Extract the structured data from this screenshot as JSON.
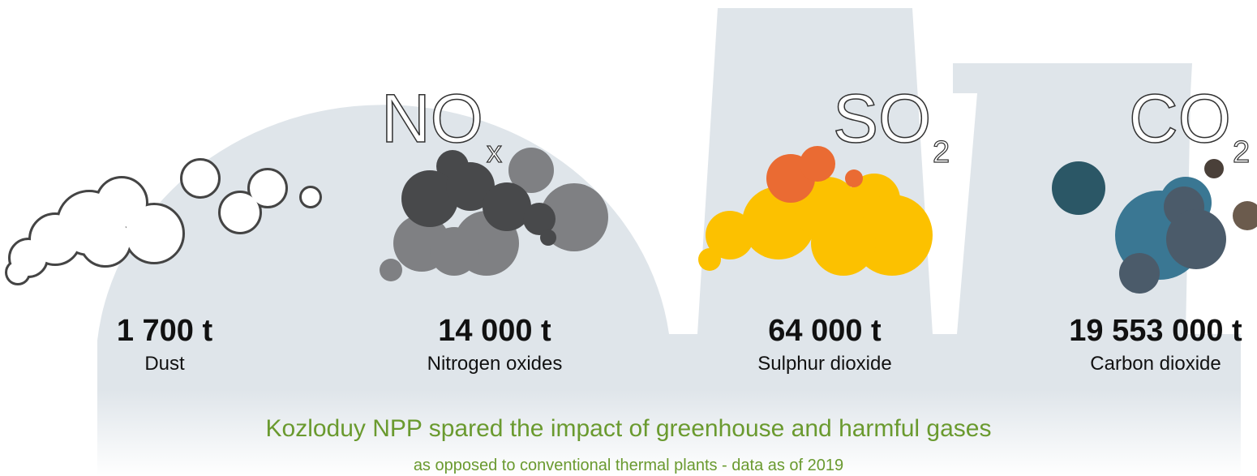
{
  "items": [
    {
      "value": "1 700 t",
      "label": "Dust"
    },
    {
      "formula": "NO",
      "subscript": "x",
      "value": "14 000 t",
      "label": "Nitrogen oxides"
    },
    {
      "formula": "SO",
      "subscript": "2",
      "value": "64 000 t",
      "label": "Sulphur dioxide"
    },
    {
      "formula": "CO",
      "subscript": "2",
      "value": "19 553 000 t",
      "label": "Carbon dioxide"
    }
  ],
  "title": "Kozloduy NPP spared the impact of greenhouse and harmful gases",
  "subtitle": "as opposed to conventional thermal plants - data as of 2019"
}
